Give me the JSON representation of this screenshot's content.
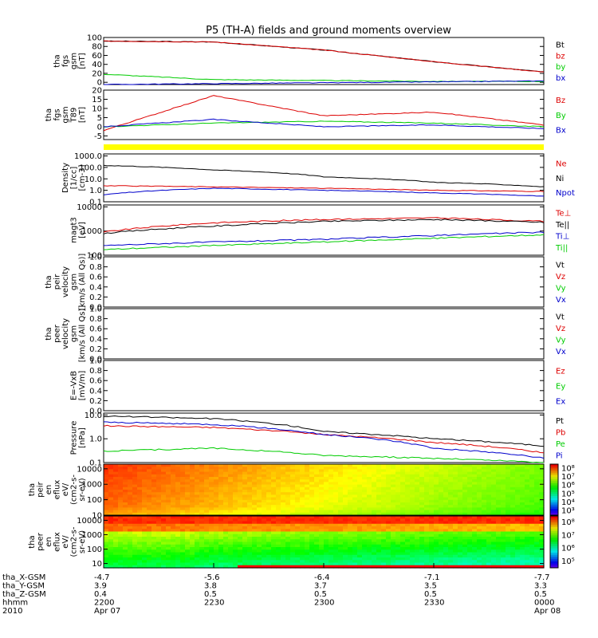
{
  "title": "P5 (TH-A) fields and ground moments overview",
  "colors": {
    "black": "#000000",
    "red": "#dd0000",
    "green": "#00cc00",
    "blue": "#0000cc",
    "yellow": "#ffff00"
  },
  "panels": [
    {
      "id": "fgs",
      "ylabel": [
        "tha",
        "fgs",
        "gsm",
        "[nT]"
      ],
      "ylim": [
        -5,
        100
      ],
      "ticks": [
        "100",
        "80",
        "60",
        "40",
        "20",
        "0"
      ],
      "tick_values": [
        100,
        80,
        60,
        40,
        20,
        0
      ],
      "legend": [
        {
          "text": "Bt",
          "color": "black"
        },
        {
          "text": "bz",
          "color": "red"
        },
        {
          "text": "by",
          "color": "green"
        },
        {
          "text": "bx",
          "color": "blue"
        }
      ]
    },
    {
      "id": "fgs89",
      "ylabel": [
        "tha",
        "fgs",
        "gsm",
        "T89",
        "[nT]"
      ],
      "ylim": [
        -7,
        20
      ],
      "ticks": [
        "20",
        "15",
        "10",
        "5",
        "0",
        "-5"
      ],
      "tick_values": [
        20,
        15,
        10,
        5,
        0,
        -5
      ],
      "legend": [
        {
          "text": "Bz",
          "color": "red"
        },
        {
          "text": "By",
          "color": "green"
        },
        {
          "text": "Bx",
          "color": "blue"
        }
      ]
    },
    {
      "id": "density",
      "ylabel": [
        "Density",
        "[1/cc]",
        "[cm-3]"
      ],
      "log": true,
      "ylim": [
        0.1,
        1500
      ],
      "ticks": [
        "1000.0",
        "100.0",
        "10.0",
        "1.0",
        "0.1"
      ],
      "tick_values": [
        1000,
        100,
        10,
        1,
        0.1
      ],
      "legend": [
        {
          "text": "Ne",
          "color": "red"
        },
        {
          "text": "Ni",
          "color": "black"
        },
        {
          "text": "Npot",
          "color": "blue"
        }
      ]
    },
    {
      "id": "temp",
      "ylabel": [
        "magt3",
        "[eV]"
      ],
      "log": true,
      "ylim": [
        100,
        12000
      ],
      "ticks": [
        "10000",
        "1000",
        "100"
      ],
      "tick_values": [
        10000,
        1000,
        100
      ],
      "legend": [
        {
          "text": "Te⊥",
          "color": "red"
        },
        {
          "text": "Te||",
          "color": "black"
        },
        {
          "text": "Ti⊥",
          "color": "blue"
        },
        {
          "text": "Ti||",
          "color": "green"
        }
      ]
    },
    {
      "id": "vi",
      "ylabel": [
        "tha",
        "peir",
        "velocity",
        "gsm",
        "[km/s (All Qs)]"
      ],
      "ylim": [
        0,
        1
      ],
      "ticks": [
        "1.0",
        "0.8",
        "0.6",
        "0.4",
        "0.2",
        "0.0"
      ],
      "tick_values": [
        1,
        0.8,
        0.6,
        0.4,
        0.2,
        0
      ],
      "legend": [
        {
          "text": "Vt",
          "color": "black"
        },
        {
          "text": "Vz",
          "color": "red"
        },
        {
          "text": "Vy",
          "color": "green"
        },
        {
          "text": "Vx",
          "color": "blue"
        }
      ]
    },
    {
      "id": "ve",
      "ylabel": [
        "tha",
        "peer",
        "velocity",
        "gsm",
        "[km/s (All Qs)]"
      ],
      "ylim": [
        0,
        1
      ],
      "ticks": [
        "1.0",
        "0.8",
        "0.6",
        "0.4",
        "0.2",
        "0.0"
      ],
      "tick_values": [
        1,
        0.8,
        0.6,
        0.4,
        0.2,
        0
      ],
      "legend": [
        {
          "text": "Vt",
          "color": "black"
        },
        {
          "text": "Vz",
          "color": "red"
        },
        {
          "text": "Vy",
          "color": "green"
        },
        {
          "text": "Vx",
          "color": "blue"
        }
      ]
    },
    {
      "id": "efield",
      "ylabel": [
        "E=-VxB",
        "[mV/m]"
      ],
      "ylim": [
        0,
        1
      ],
      "ticks": [
        "1.0",
        "0.8",
        "0.6",
        "0.4",
        "0.2",
        "0.0"
      ],
      "tick_values": [
        1,
        0.8,
        0.6,
        0.4,
        0.2,
        0
      ],
      "legend": [
        {
          "text": "Ez",
          "color": "red"
        },
        {
          "text": "Ey",
          "color": "green"
        },
        {
          "text": "Ex",
          "color": "blue"
        }
      ]
    },
    {
      "id": "pressure",
      "ylabel": [
        "Pressure",
        "[nPa]"
      ],
      "log": true,
      "ylim": [
        0.1,
        12
      ],
      "ticks": [
        "10.0",
        "1.0",
        "0.1"
      ],
      "tick_values": [
        10,
        1,
        0.1
      ],
      "legend": [
        {
          "text": "Pt",
          "color": "black"
        },
        {
          "text": "Pb",
          "color": "red"
        },
        {
          "text": "Pe",
          "color": "green"
        },
        {
          "text": "Pi",
          "color": "blue"
        }
      ]
    },
    {
      "id": "ion_spec",
      "ylabel": [
        "tha",
        "peir",
        "en",
        "eflux",
        "eV/",
        "(cm2-s-",
        "sr-eV)"
      ],
      "log": true,
      "ylim": [
        10,
        20000
      ],
      "ticks": [
        "10000",
        "1000",
        "100",
        "10"
      ],
      "tick_values": [
        10000,
        1000,
        100,
        10
      ],
      "colorbar": [
        "10⁸",
        "10⁷",
        "10⁶",
        "10⁵",
        "10⁴",
        "10³"
      ]
    },
    {
      "id": "elec_spec",
      "ylabel": [
        "tha",
        "peer",
        "en",
        "eflux",
        "eV/",
        "(cm2-s-",
        "sr-eV)"
      ],
      "log": true,
      "ylim": [
        5,
        20000
      ],
      "ticks": [
        "10000",
        "1000",
        "100",
        "10"
      ],
      "tick_values": [
        10000,
        1000,
        100,
        10
      ],
      "colorbar": [
        "10⁸",
        "10⁷",
        "10⁶",
        "10⁵"
      ]
    }
  ],
  "footer": {
    "row_labels": [
      "tha_X-GSM",
      "tha_Y-GSM",
      "tha_Z-GSM",
      "hhmm",
      "2010"
    ],
    "columns": [
      [
        "-4.7",
        "3.9",
        "0.4",
        "2200",
        "Apr 07"
      ],
      [
        "-5.6",
        "3.8",
        "0.5",
        "2230",
        ""
      ],
      [
        "-6.4",
        "3.7",
        "0.5",
        "2300",
        ""
      ],
      [
        "-7.1",
        "3.5",
        "0.5",
        "2330",
        ""
      ],
      [
        "-7.7",
        "3.3",
        "0.5",
        "0000",
        "Apr 08"
      ]
    ]
  },
  "chart_data": {
    "type": "line",
    "title": "P5 (TH-A) fields and ground moments overview",
    "x": [
      "2200",
      "2230",
      "2300",
      "2330",
      "0000"
    ],
    "series": [
      {
        "panel": "fgs",
        "name": "Bt",
        "color": "black",
        "values": [
          92,
          90,
          72,
          46,
          23
        ]
      },
      {
        "panel": "fgs",
        "name": "bz",
        "color": "red",
        "values": [
          92,
          90,
          72,
          46,
          23
        ]
      },
      {
        "panel": "fgs",
        "name": "by",
        "color": "green",
        "values": [
          18,
          6,
          4,
          2,
          2
        ]
      },
      {
        "panel": "fgs",
        "name": "bx",
        "color": "blue",
        "values": [
          -5,
          -3,
          -1,
          1,
          3
        ]
      },
      {
        "panel": "fgs89",
        "name": "Bz",
        "color": "red",
        "values": [
          -2,
          17,
          6,
          8,
          1
        ]
      },
      {
        "panel": "fgs89",
        "name": "By",
        "color": "green",
        "values": [
          0,
          2,
          3,
          2,
          0
        ]
      },
      {
        "panel": "fgs89",
        "name": "Bx",
        "color": "blue",
        "values": [
          0,
          4,
          0,
          1,
          -1
        ]
      },
      {
        "panel": "density",
        "name": "Ni",
        "color": "black",
        "values": [
          150,
          60,
          15,
          5,
          2
        ]
      },
      {
        "panel": "density",
        "name": "Ne",
        "color": "red",
        "values": [
          2.5,
          2,
          1.5,
          1,
          0.8
        ]
      },
      {
        "panel": "density",
        "name": "Npot",
        "color": "blue",
        "values": [
          0.4,
          1.5,
          1,
          0.6,
          0.3
        ]
      },
      {
        "panel": "temp",
        "name": "Te⊥",
        "color": "red",
        "values": [
          900,
          2200,
          3000,
          3500,
          2500
        ]
      },
      {
        "panel": "temp",
        "name": "Te||",
        "color": "black",
        "values": [
          800,
          1600,
          2500,
          3000,
          2300
        ]
      },
      {
        "panel": "temp",
        "name": "Ti⊥",
        "color": "blue",
        "values": [
          250,
          350,
          450,
          650,
          900
        ]
      },
      {
        "panel": "temp",
        "name": "Ti||",
        "color": "green",
        "values": [
          170,
          250,
          350,
          500,
          700
        ]
      },
      {
        "panel": "pressure",
        "name": "Pt",
        "color": "black",
        "values": [
          9,
          7,
          2,
          1,
          0.5
        ]
      },
      {
        "panel": "pressure",
        "name": "Pb",
        "color": "red",
        "values": [
          3.5,
          3,
          1.5,
          0.7,
          0.25
        ]
      },
      {
        "panel": "pressure",
        "name": "Pe",
        "color": "green",
        "values": [
          0.3,
          0.4,
          0.2,
          0.15,
          0.1
        ]
      },
      {
        "panel": "pressure",
        "name": "Pi",
        "color": "blue",
        "values": [
          5,
          4,
          1.5,
          0.4,
          0.15
        ]
      }
    ]
  }
}
